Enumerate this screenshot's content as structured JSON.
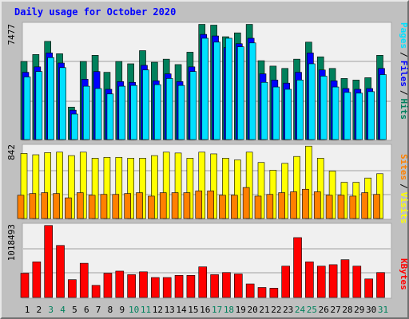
{
  "title": "Daily usage for October 2020",
  "colors": {
    "hits": "#00805C",
    "files": "#0000FF",
    "pages": "#00E0FF",
    "visits": "#FFFF00",
    "sites": "#FF8000",
    "kbytes": "#FF0000",
    "title": "#0000FF",
    "weekend_label": "#00805C",
    "background": "#C0C0C0",
    "plot_background": "#F0F0F0"
  },
  "chart_data": [
    {
      "type": "bar",
      "name": "pages-files-hits",
      "y_label_value": "7477",
      "axis_labels": [
        "Pages",
        "/",
        "Files",
        "/",
        "Hits"
      ],
      "ylim": [
        0,
        7477
      ],
      "categories": [
        "1",
        "2",
        "3",
        "4",
        "5",
        "6",
        "7",
        "8",
        "9",
        "10",
        "11",
        "12",
        "13",
        "14",
        "15",
        "16",
        "17",
        "18",
        "19",
        "20",
        "21",
        "22",
        "23",
        "24",
        "25",
        "26",
        "27",
        "28",
        "29",
        "30",
        "31"
      ],
      "weekend_days": [
        "3",
        "4",
        "10",
        "11",
        "17",
        "18",
        "24",
        "25",
        "31"
      ],
      "series": [
        {
          "name": "Hits",
          "values": [
            5050,
            5500,
            6350,
            5550,
            2100,
            5050,
            5450,
            4350,
            5050,
            4900,
            5750,
            5000,
            5200,
            4850,
            5650,
            7450,
            7400,
            6650,
            6900,
            7450,
            5100,
            4750,
            4600,
            5200,
            6300,
            5350,
            4600,
            3950,
            3850,
            4000,
            5450
          ]
        },
        {
          "name": "Files",
          "values": [
            4350,
            4700,
            5600,
            4950,
            1900,
            3900,
            4400,
            3250,
            3750,
            3700,
            4800,
            3800,
            4250,
            3750,
            4700,
            6800,
            6700,
            5950,
            6200,
            6550,
            4250,
            3850,
            3650,
            4350,
            5600,
            4500,
            3800,
            3300,
            3250,
            3300,
            4600
          ]
        },
        {
          "name": "Pages",
          "values": [
            4050,
            4400,
            5300,
            4650,
            1650,
            3450,
            3300,
            2950,
            3450,
            3500,
            4500,
            3550,
            3950,
            3500,
            4400,
            6550,
            6300,
            6550,
            6000,
            6250,
            3700,
            3400,
            3250,
            3850,
            4900,
            4100,
            3400,
            3050,
            3000,
            3100,
            4200
          ]
        }
      ]
    },
    {
      "type": "bar",
      "name": "visits-sites",
      "y_label_value": "842",
      "axis_labels": [
        "Sites",
        "/",
        "Visits"
      ],
      "ylim": [
        0,
        842
      ],
      "categories": [
        "1",
        "2",
        "3",
        "4",
        "5",
        "6",
        "7",
        "8",
        "9",
        "10",
        "11",
        "12",
        "13",
        "14",
        "15",
        "16",
        "17",
        "18",
        "19",
        "20",
        "21",
        "22",
        "23",
        "24",
        "25",
        "26",
        "27",
        "28",
        "29",
        "30",
        "31"
      ],
      "series": [
        {
          "name": "Visits",
          "values": [
            755,
            740,
            765,
            770,
            730,
            770,
            700,
            710,
            710,
            700,
            700,
            730,
            770,
            760,
            700,
            770,
            750,
            700,
            680,
            770,
            650,
            560,
            640,
            720,
            840,
            700,
            550,
            420,
            420,
            470,
            520
          ]
        },
        {
          "name": "Sites",
          "values": [
            270,
            290,
            300,
            290,
            240,
            300,
            270,
            280,
            280,
            290,
            300,
            260,
            300,
            300,
            300,
            320,
            320,
            270,
            270,
            360,
            260,
            280,
            300,
            310,
            340,
            310,
            270,
            270,
            260,
            300,
            280
          ]
        }
      ]
    },
    {
      "type": "bar",
      "name": "kbytes",
      "y_label_value": "1018493",
      "axis_labels": [
        "KBytes"
      ],
      "ylim": [
        0,
        1018493
      ],
      "categories": [
        "1",
        "2",
        "3",
        "4",
        "5",
        "6",
        "7",
        "8",
        "9",
        "10",
        "11",
        "12",
        "13",
        "14",
        "15",
        "16",
        "17",
        "18",
        "19",
        "20",
        "21",
        "22",
        "23",
        "24",
        "25",
        "26",
        "27",
        "28",
        "29",
        "30",
        "31"
      ],
      "series": [
        {
          "name": "KBytes",
          "values": [
            340000,
            500000,
            1010000,
            730000,
            250000,
            480000,
            170000,
            340000,
            370000,
            320000,
            360000,
            280000,
            280000,
            310000,
            310000,
            430000,
            320000,
            350000,
            330000,
            190000,
            140000,
            130000,
            440000,
            840000,
            500000,
            440000,
            460000,
            530000,
            440000,
            260000,
            350000
          ]
        }
      ]
    }
  ]
}
